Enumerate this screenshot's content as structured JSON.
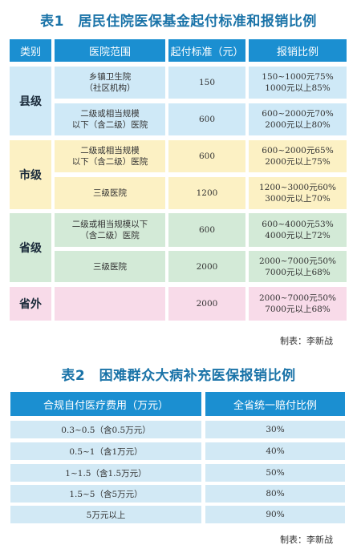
{
  "table1": {
    "title": "表1　居民住院医保基金起付标准和报销比例",
    "headers": [
      "类别",
      "医院范围",
      "起付标准（元）",
      "报销比例"
    ],
    "rows": [
      {
        "category": "县级",
        "hospital": "乡镇卫生院\n（社区机构）",
        "threshold": "150",
        "rates": "150~1000元75%\n1000元以上85%"
      },
      {
        "category": "县级",
        "hospital": "二级或相当规模\n以下（含二级）医院",
        "threshold": "600",
        "rates": "600~2000元70%\n2000元以上80%"
      },
      {
        "category": "市级",
        "hospital": "二级或相当规模\n以下（含二级）医院",
        "threshold": "600",
        "rates": "600~2000元65%\n2000元以上75%"
      },
      {
        "category": "市级",
        "hospital": "三级医院",
        "threshold": "1200",
        "rates": "1200~3000元60%\n3000元以上70%"
      },
      {
        "category": "省级",
        "hospital": "二级或相当规模以下\n（含二级）医院",
        "threshold": "600",
        "rates": "600~4000元53%\n4000元以上72%"
      },
      {
        "category": "省级",
        "hospital": "三级医院",
        "threshold": "2000",
        "rates": "2000~7000元50%\n7000元以上68%"
      },
      {
        "category": "省外",
        "hospital": "",
        "threshold": "2000",
        "rates": "2000~7000元50%\n7000元以上68%"
      }
    ],
    "categories": [
      "县级",
      "市级",
      "省级",
      "省外"
    ],
    "credit": "制表：李新战"
  },
  "table2": {
    "title": "表2　困难群众大病补充医保报销比例",
    "headers": [
      "合规自付医疗费用（万元）",
      "全省统一赔付比例"
    ],
    "rows": [
      {
        "range": "0.3~0.5（含0.5万元）",
        "ratio": "30%"
      },
      {
        "range": "0.5~1（含1万元）",
        "ratio": "40%"
      },
      {
        "range": "1~1.5（含1.5万元）",
        "ratio": "50%"
      },
      {
        "range": "1.5~5（含5万元）",
        "ratio": "80%"
      },
      {
        "range": "5万元以上",
        "ratio": "90%"
      }
    ],
    "credit": "制表：李新战"
  },
  "colors": {
    "header": "#1b8fd1",
    "county": "#cfe9f7",
    "city": "#fcf1c4",
    "province": "#d3ead7",
    "outside": "#f8dbe9",
    "title": "#1a73a8"
  }
}
